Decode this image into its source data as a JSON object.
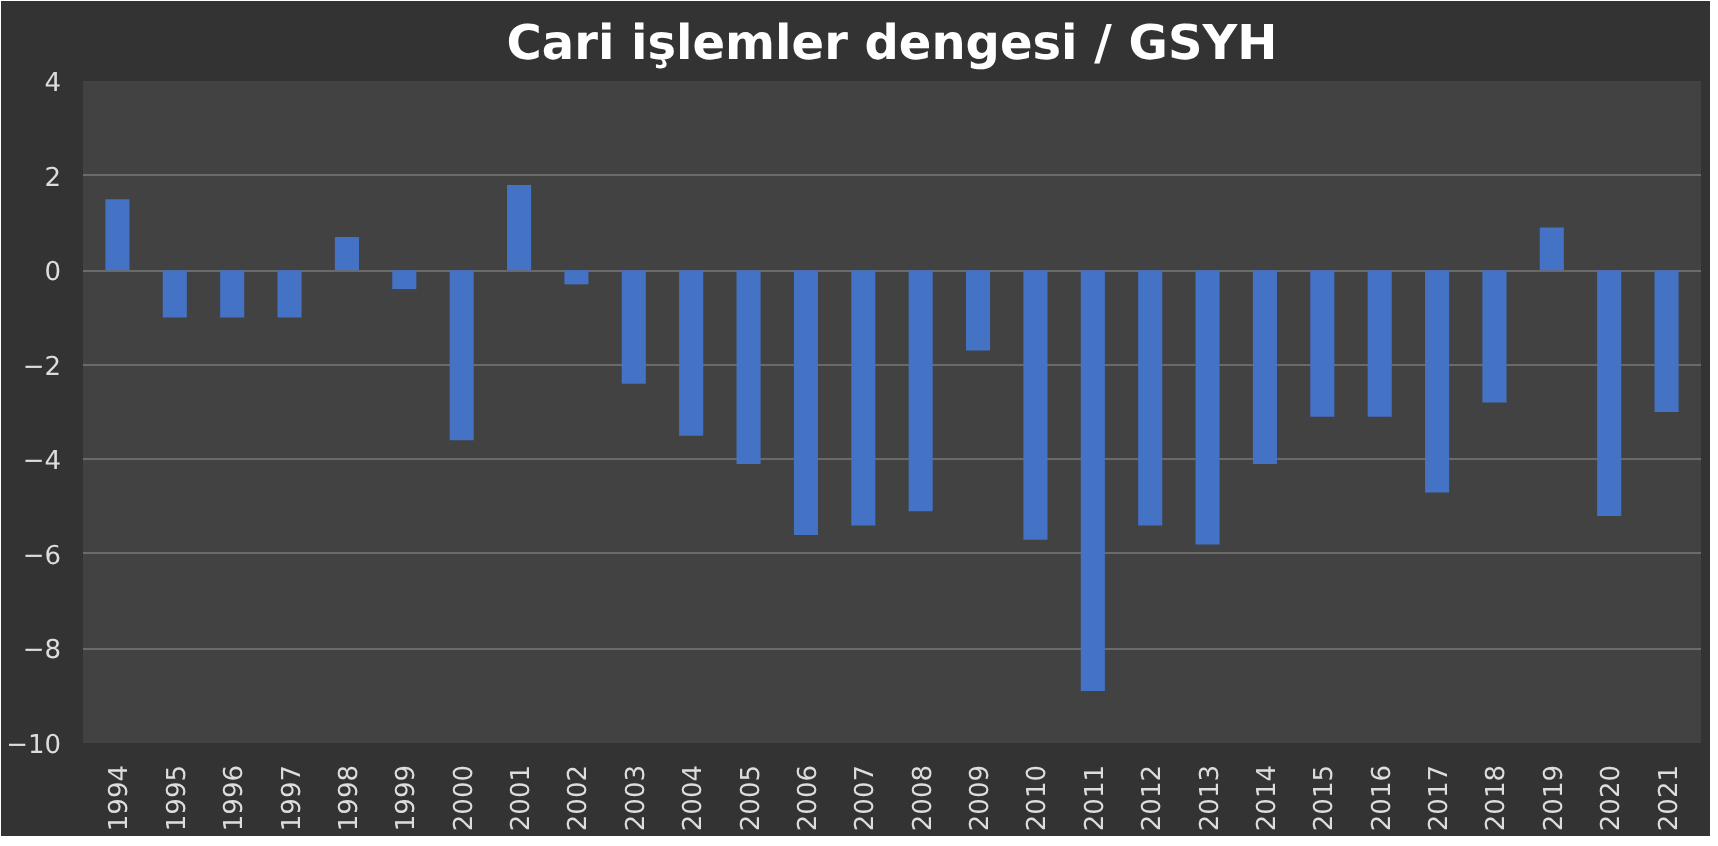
{
  "chart_data": {
    "type": "bar",
    "title": "Cari işlemler dengesi / GSYH",
    "categories": [
      "1994",
      "1995",
      "1996",
      "1997",
      "1998",
      "1999",
      "2000",
      "2001",
      "2002",
      "2003",
      "2004",
      "2005",
      "2006",
      "2007",
      "2008",
      "2009",
      "2010",
      "2011",
      "2012",
      "2013",
      "2014",
      "2015",
      "2016",
      "2017",
      "2018",
      "2019",
      "2020",
      "2021"
    ],
    "values": [
      1.5,
      -1.0,
      -1.0,
      -1.0,
      0.7,
      -0.4,
      -3.6,
      1.8,
      -0.3,
      -2.4,
      -3.5,
      -4.1,
      -5.6,
      -5.4,
      -5.1,
      -1.7,
      -5.7,
      -8.9,
      -5.4,
      -5.8,
      -4.1,
      -3.1,
      -3.1,
      -4.7,
      -2.8,
      0.9,
      -5.2,
      -3.0
    ],
    "color": "#4472c4",
    "ylim": [
      -10,
      4
    ],
    "yticks": [
      -10,
      -8,
      -6,
      -4,
      -2,
      0,
      2,
      4
    ],
    "grid": "y"
  }
}
